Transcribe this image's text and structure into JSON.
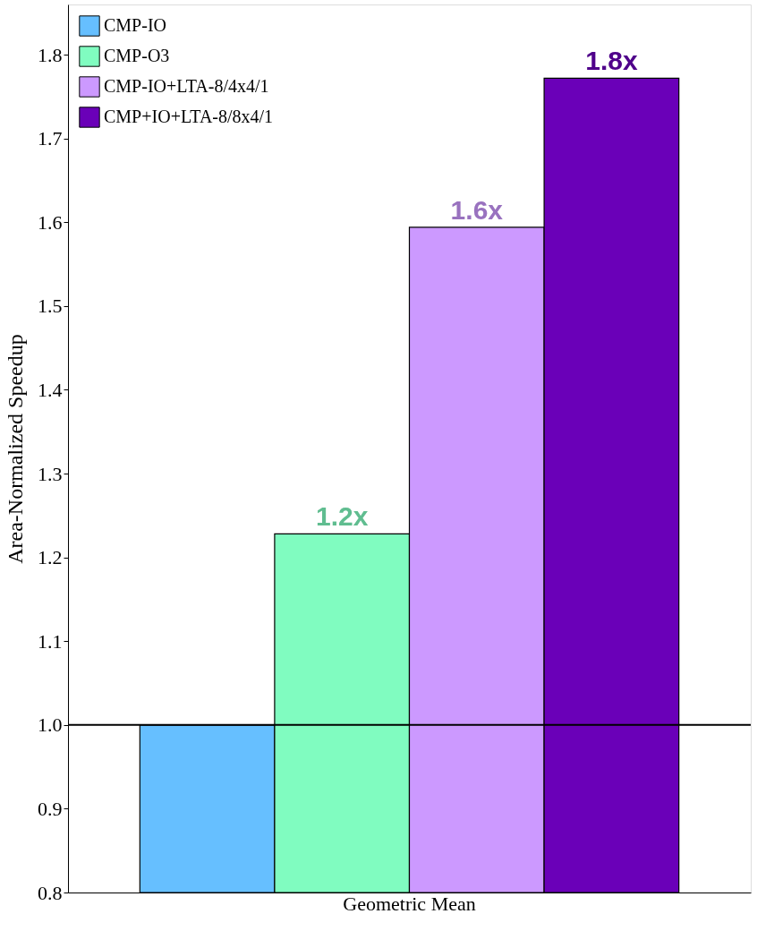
{
  "chart_data": {
    "type": "bar",
    "ylabel": "Area-Normalized Speedup",
    "categories": [
      "Geometric Mean"
    ],
    "series": [
      {
        "name": "CMP-IO",
        "color": "#66bfff",
        "values": [
          1.0
        ],
        "value_labels": [
          null
        ]
      },
      {
        "name": "CMP-O3",
        "color": "#80fcc0",
        "values": [
          1.228
        ],
        "value_labels": [
          "1.2x"
        ]
      },
      {
        "name": "CMP-IO+LTA-8/4x4/1",
        "color": "#cc99ff",
        "values": [
          1.594
        ],
        "value_labels": [
          "1.6x"
        ]
      },
      {
        "name": "CMP+IO+LTA-8/8x4/1",
        "color": "#6a00b8",
        "values": [
          1.772
        ],
        "value_labels": [
          "1.8x"
        ]
      }
    ],
    "ylim": [
      0.8,
      1.86
    ],
    "yticks": [
      0.8,
      0.9,
      {
        "value": 1.0,
        "label": "1.0"
      },
      1.1,
      1.2,
      1.3,
      1.4,
      1.5,
      1.6,
      1.7,
      1.8
    ],
    "ref_lines": [
      {
        "axis": "y",
        "value": 1.0,
        "color": "#000000"
      }
    ],
    "grid": false,
    "legend": "top left"
  }
}
